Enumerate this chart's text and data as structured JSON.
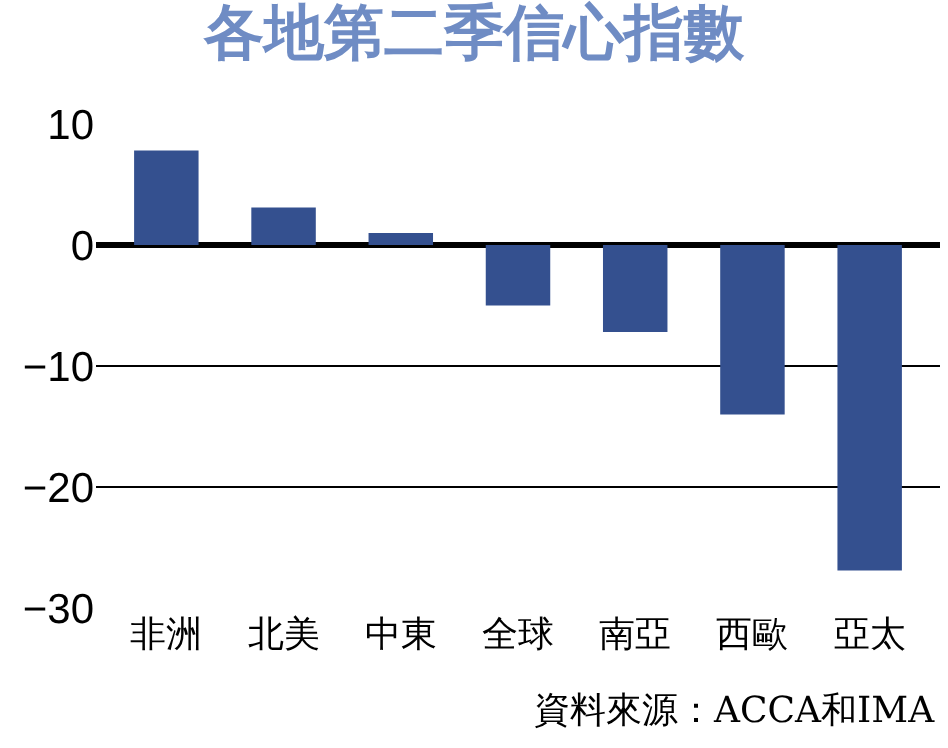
{
  "chart_data": {
    "type": "bar",
    "title": "各地第二季信心指數",
    "categories": [
      "非洲",
      "北美",
      "中東",
      "全球",
      "南亞",
      "西歐",
      "亞太"
    ],
    "values": [
      7.8,
      3.1,
      1.0,
      -5.0,
      -7.2,
      -14,
      -26.9
    ],
    "color": "#34508f",
    "ylim": [
      -30,
      10
    ],
    "yticks": [
      -30,
      -20,
      -10,
      0,
      10
    ],
    "grid": "y",
    "annotations": [
      "資料來源：ACCA和IMA"
    ]
  }
}
